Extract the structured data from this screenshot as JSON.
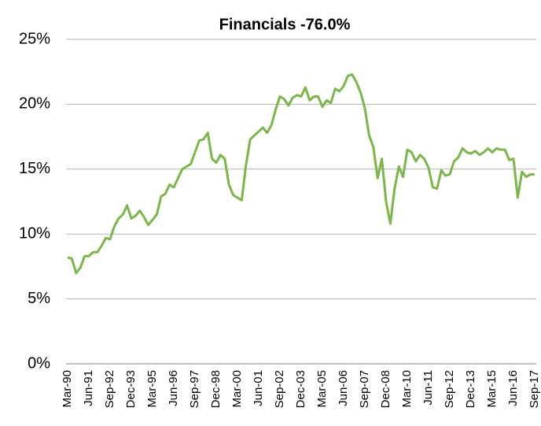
{
  "chart_data": {
    "type": "line",
    "title": "Financials -76.0%",
    "categories": [
      "Mar-90",
      null,
      null,
      null,
      null,
      "Jun-91",
      null,
      null,
      null,
      null,
      "Sep-92",
      null,
      null,
      null,
      null,
      "Dec-93",
      null,
      null,
      null,
      null,
      "Mar-95",
      null,
      null,
      null,
      null,
      "Jun-96",
      null,
      null,
      null,
      null,
      "Sep-97",
      null,
      null,
      null,
      null,
      "Dec-98",
      null,
      null,
      null,
      null,
      "Mar-00",
      null,
      null,
      null,
      null,
      "Jun-01",
      null,
      null,
      null,
      null,
      "Sep-02",
      null,
      null,
      null,
      null,
      "Dec-03",
      null,
      null,
      null,
      null,
      "Mar-05",
      null,
      null,
      null,
      null,
      "Jun-06",
      null,
      null,
      null,
      null,
      "Sep-07",
      null,
      null,
      null,
      null,
      "Dec-08",
      null,
      null,
      null,
      null,
      "Mar-10",
      null,
      null,
      null,
      null,
      "Jun-11",
      null,
      null,
      null,
      null,
      "Sep-12",
      null,
      null,
      null,
      null,
      "Dec-13",
      null,
      null,
      null,
      null,
      "Mar-15",
      null,
      null,
      null,
      null,
      "Jun-16",
      null,
      null,
      null,
      null,
      "Sep-17"
    ],
    "series": [
      {
        "name": "Financials",
        "color": "#7ab648",
        "values": [
          8.2,
          8.1,
          7.0,
          7.4,
          8.3,
          8.3,
          8.6,
          8.6,
          9.1,
          9.7,
          9.6,
          10.6,
          11.2,
          11.5,
          12.2,
          11.2,
          11.4,
          11.8,
          11.3,
          10.7,
          11.1,
          11.5,
          12.9,
          13.1,
          13.8,
          13.6,
          14.3,
          15.0,
          15.2,
          15.4,
          16.3,
          17.2,
          17.3,
          17.8,
          15.8,
          15.5,
          16.1,
          15.8,
          13.8,
          13.0,
          12.8,
          12.6,
          15.3,
          17.3,
          17.6,
          17.9,
          18.2,
          17.8,
          18.4,
          19.6,
          20.6,
          20.4,
          19.9,
          20.5,
          20.7,
          20.6,
          21.3,
          20.3,
          20.6,
          20.6,
          19.8,
          20.3,
          20.1,
          21.2,
          21.0,
          21.4,
          22.2,
          22.3,
          21.7,
          20.9,
          19.7,
          17.6,
          16.7,
          14.3,
          15.8,
          12.5,
          10.8,
          13.5,
          15.2,
          14.4,
          16.5,
          16.3,
          15.6,
          16.1,
          15.8,
          15.1,
          13.6,
          13.5,
          14.9,
          14.5,
          14.6,
          15.6,
          15.9,
          16.6,
          16.3,
          16.2,
          16.4,
          16.1,
          16.3,
          16.6,
          16.3,
          16.6,
          16.5,
          16.5,
          15.7,
          15.8,
          12.8,
          14.8,
          14.4,
          14.6,
          14.6
        ]
      }
    ],
    "ylim": [
      0,
      25
    ],
    "yticks": [
      {
        "value": 0,
        "label": "0%"
      },
      {
        "value": 5,
        "label": "5%"
      },
      {
        "value": 10,
        "label": "10%"
      },
      {
        "value": 15,
        "label": "15%"
      },
      {
        "value": 20,
        "label": "20%"
      },
      {
        "value": 25,
        "label": "25%"
      }
    ],
    "grid": true
  }
}
